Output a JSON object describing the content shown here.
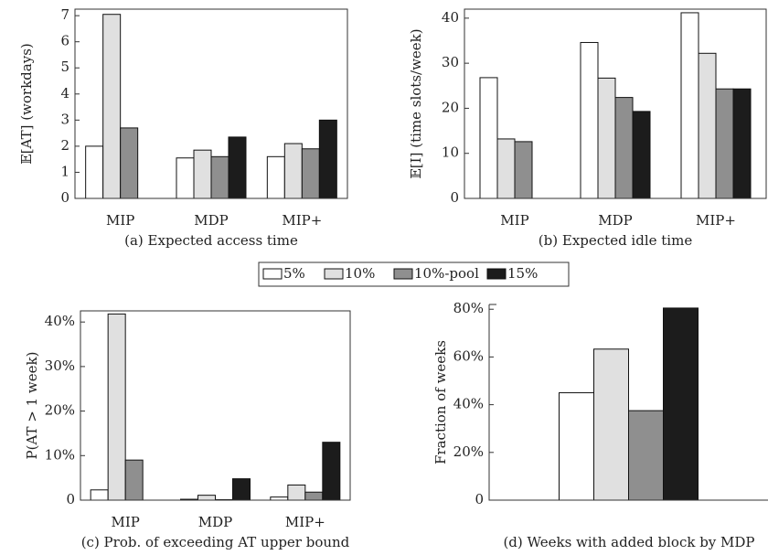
{
  "chart_data": [
    {
      "type": "bar",
      "caption": "(a) Expected access time",
      "ylabel": "𝔼[AT] (workdays)",
      "categories": [
        "MIP",
        "MDP",
        "MIP+"
      ],
      "ylim": [
        0,
        7.25
      ],
      "yticks": [
        0,
        1,
        2,
        3,
        4,
        5,
        6,
        7
      ],
      "series": [
        {
          "name": "5%",
          "color": "#ffffff",
          "values": [
            2.0,
            1.55,
            1.6
          ]
        },
        {
          "name": "10%",
          "color": "#e0e0e0",
          "values": [
            7.05,
            1.85,
            2.1
          ]
        },
        {
          "name": "10%-pool",
          "color": "#8f8f8f",
          "values": [
            2.7,
            1.6,
            1.9
          ]
        },
        {
          "name": "15%",
          "color": "#1c1c1c",
          "values": [
            null,
            2.35,
            3.0
          ]
        }
      ]
    },
    {
      "type": "bar",
      "caption": "(b) Expected idle time",
      "ylabel": "𝔼[I] (time slots/week)",
      "categories": [
        "MIP",
        "MDP",
        "MIP+"
      ],
      "ylim": [
        0,
        42
      ],
      "yticks": [
        0,
        10,
        20,
        30,
        40
      ],
      "series": [
        {
          "name": "5%",
          "color": "#ffffff",
          "values": [
            26.8,
            34.6,
            41.2
          ]
        },
        {
          "name": "10%",
          "color": "#e0e0e0",
          "values": [
            13.2,
            26.7,
            32.2
          ]
        },
        {
          "name": "10%-pool",
          "color": "#8f8f8f",
          "values": [
            12.6,
            22.4,
            24.3
          ]
        },
        {
          "name": "15%",
          "color": "#1c1c1c",
          "values": [
            null,
            19.3,
            24.3
          ]
        }
      ]
    },
    {
      "type": "bar",
      "caption": "(c) Prob. of exceeding AT upper bound",
      "ylabel": "P(AT > 1 week)",
      "categories": [
        "MIP",
        "MDP",
        "MIP+"
      ],
      "ylim": [
        0,
        42.5
      ],
      "yticks": [
        0,
        {
          "value": 10,
          "label": "10%"
        },
        {
          "value": 20,
          "label": "20%"
        },
        {
          "value": 30,
          "label": "30%"
        },
        {
          "value": 40,
          "label": "40%"
        }
      ],
      "series": [
        {
          "name": "5%",
          "color": "#ffffff",
          "values": [
            2.3,
            0.2,
            0.7
          ]
        },
        {
          "name": "10%",
          "color": "#e0e0e0",
          "values": [
            41.8,
            1.1,
            3.4
          ]
        },
        {
          "name": "10%-pool",
          "color": "#8f8f8f",
          "values": [
            9.0,
            0.1,
            1.8
          ]
        },
        {
          "name": "15%",
          "color": "#1c1c1c",
          "values": [
            null,
            4.8,
            13.0
          ]
        }
      ]
    },
    {
      "type": "bar",
      "caption": "(d) Weeks with added block by MDP",
      "ylabel": "Fraction of weeks",
      "categories": [
        null
      ],
      "ylim": [
        0,
        82
      ],
      "yticks": [
        0,
        {
          "value": 20,
          "label": "20%"
        },
        {
          "value": 40,
          "label": "40%"
        },
        {
          "value": 60,
          "label": "60%"
        },
        {
          "value": 80,
          "label": "80%"
        }
      ],
      "series": [
        {
          "name": "5%",
          "color": "#ffffff",
          "values": [
            45.0
          ]
        },
        {
          "name": "10%",
          "color": "#e0e0e0",
          "values": [
            63.3
          ]
        },
        {
          "name": "10%-pool",
          "color": "#8f8f8f",
          "values": [
            37.5
          ]
        },
        {
          "name": "15%",
          "color": "#1c1c1c",
          "values": [
            80.5
          ]
        }
      ]
    }
  ]
}
